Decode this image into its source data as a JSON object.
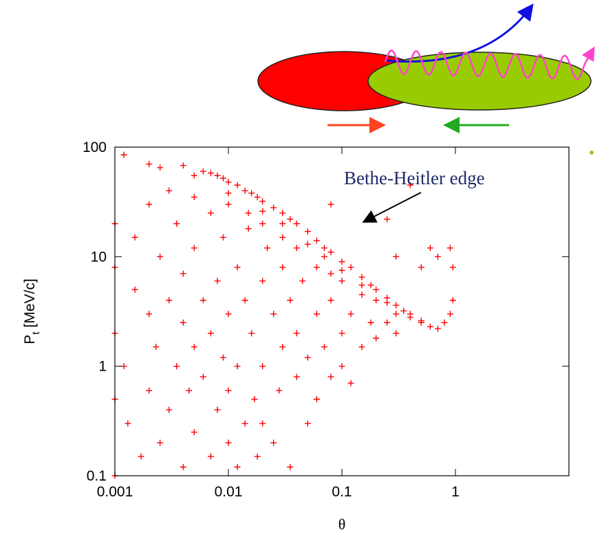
{
  "chart_data": {
    "type": "scatter",
    "xlabel": "θ",
    "ylabel": {
      "main": "P",
      "sub": "t",
      "rest": "[MeV/c]"
    },
    "annotation": "Bethe-Heitler edge",
    "log_x": true,
    "log_y": true,
    "color": "#ff0000",
    "marker": "+",
    "xlim": [
      0.001,
      10
    ],
    "ylim": [
      0.1,
      100
    ],
    "xticks": [
      0.001,
      0.01,
      0.1,
      1
    ],
    "yticks": [
      0.1,
      1,
      10,
      100
    ],
    "x": [
      0.005,
      0.006,
      0.007,
      0.008,
      0.009,
      0.01,
      0.012,
      0.014,
      0.016,
      0.018,
      0.02,
      0.025,
      0.03,
      0.035,
      0.04,
      0.05,
      0.06,
      0.07,
      0.08,
      0.1,
      0.12,
      0.15,
      0.18,
      0.2,
      0.25,
      0.3,
      0.35,
      0.4,
      0.5,
      0.6,
      0.7,
      0.8,
      0.9,
      0.95,
      0.01,
      0.015,
      0.02,
      0.03,
      0.04,
      0.06,
      0.08,
      0.1,
      0.15,
      0.2,
      0.3,
      0.5,
      0.01,
      0.02,
      0.03,
      0.05,
      0.07,
      0.1,
      0.15,
      0.25,
      0.4,
      0.001,
      0.0012,
      0.002,
      0.0025,
      0.004,
      0.08,
      0.25,
      0.4,
      0.6,
      0.7,
      0.9,
      0.95,
      0.5,
      0.3,
      0.001,
      0.001,
      0.001,
      0.001,
      0.0012,
      0.0013,
      0.0015,
      0.0015,
      0.0017,
      0.002,
      0.002,
      0.002,
      0.0023,
      0.0025,
      0.0025,
      0.003,
      0.003,
      0.003,
      0.0035,
      0.0035,
      0.004,
      0.004,
      0.004,
      0.0045,
      0.005,
      0.005,
      0.005,
      0.005,
      0.006,
      0.006,
      0.007,
      0.007,
      0.007,
      0.008,
      0.008,
      0.009,
      0.009,
      0.01,
      0.01,
      0.01,
      0.012,
      0.012,
      0.012,
      0.014,
      0.014,
      0.015,
      0.016,
      0.017,
      0.018,
      0.02,
      0.02,
      0.02,
      0.022,
      0.025,
      0.025,
      0.028,
      0.03,
      0.03,
      0.035,
      0.035,
      0.04,
      0.04,
      0.045,
      0.05,
      0.05,
      0.06,
      0.06,
      0.07,
      0.08,
      0.08,
      0.1,
      0.1,
      0.12,
      0.12,
      0.15,
      0.18,
      0.2,
      0.25,
      0.3
    ],
    "values": [
      55,
      60,
      58,
      55,
      52,
      48,
      45,
      40,
      38,
      35,
      32,
      28,
      25,
      22,
      20,
      17,
      14,
      12,
      11,
      9,
      8,
      6.5,
      5.5,
      5,
      4.2,
      3.6,
      3.2,
      3,
      2.6,
      2.3,
      2.2,
      2.5,
      3,
      4,
      30,
      25,
      20,
      15,
      12,
      8,
      7,
      6,
      4.5,
      4,
      3,
      2.5,
      38,
      26,
      20,
      13,
      10,
      7.5,
      5.5,
      3.8,
      2.8,
      20,
      85,
      70,
      65,
      68,
      30,
      22,
      45,
      12,
      10,
      12,
      8,
      8,
      10,
      0.1,
      0.5,
      2,
      8,
      1,
      0.3,
      5,
      15,
      0.15,
      3,
      0.6,
      30,
      1.5,
      0.2,
      10,
      0.4,
      4,
      40,
      1,
      20,
      0.12,
      2.5,
      7,
      0.6,
      0.25,
      1.5,
      12,
      35,
      4,
      0.8,
      0.15,
      2,
      25,
      0.4,
      6,
      1.2,
      15,
      0.2,
      3,
      0.6,
      1,
      8,
      0.12,
      0.3,
      4,
      18,
      2,
      0.5,
      0.15,
      1,
      6,
      0.3,
      12,
      0.2,
      3,
      0.6,
      1.5,
      8,
      0.12,
      4,
      0.8,
      2,
      6,
      1.2,
      0.3,
      3,
      0.5,
      1.5,
      4,
      0.8,
      2,
      1,
      3,
      0.7,
      1.5,
      2.5,
      1.8,
      2.5,
      2
    ]
  }
}
